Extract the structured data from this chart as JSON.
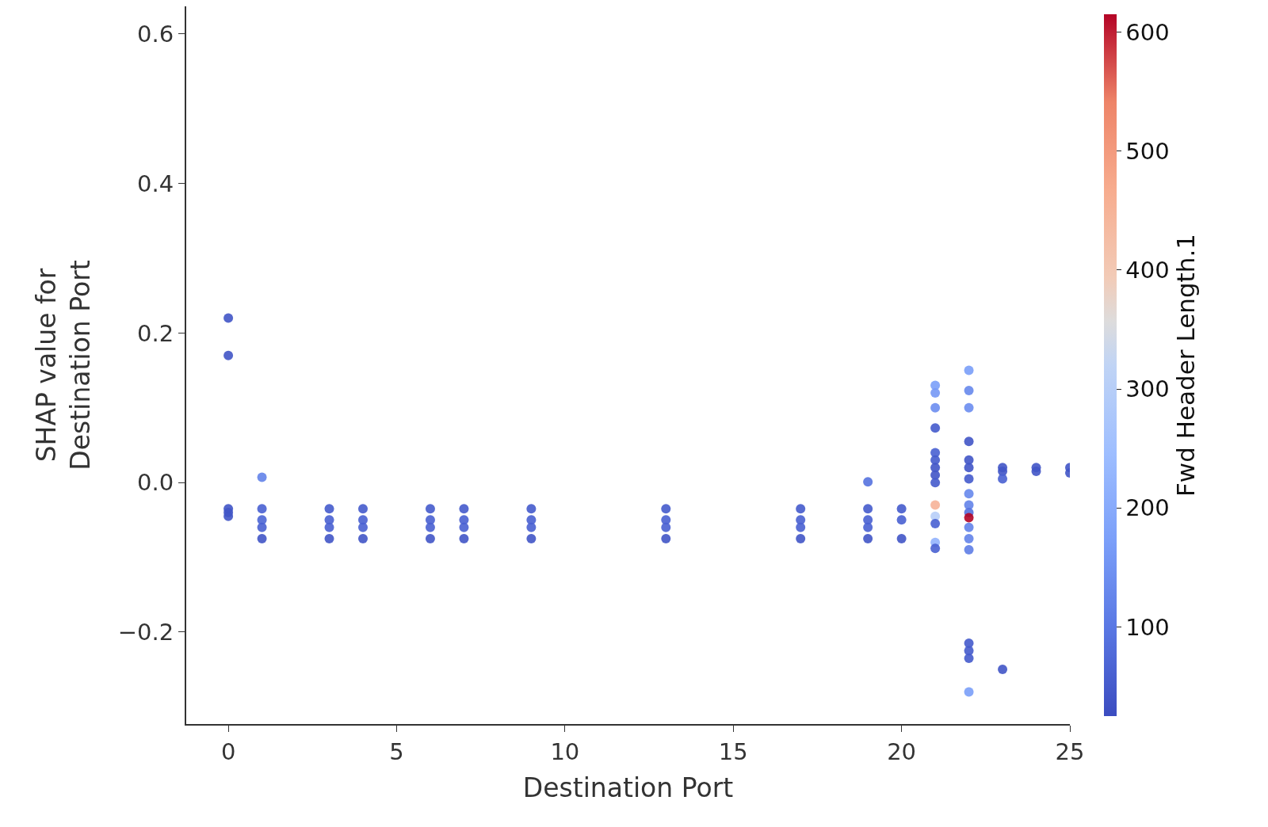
{
  "chart_data": {
    "type": "scatter",
    "xlabel": "Destination Port",
    "ylabel": "SHAP value for\nDestination Port",
    "clabel": "Fwd Header Length.1",
    "marker": "circle",
    "grid": false,
    "xlim": [
      -1.25,
      25
    ],
    "xticks": [
      0,
      5,
      10,
      15,
      20,
      25
    ],
    "ylim": [
      -0.323,
      0.637
    ],
    "yticks": [
      {
        "value": -0.2,
        "label": "−0.2"
      },
      {
        "value": 0,
        "label": "0.0"
      },
      {
        "value": 0.2,
        "label": "0.2"
      },
      {
        "value": 0.4,
        "label": "0.4"
      },
      {
        "value": 0.6,
        "label": "0.6"
      }
    ],
    "clim": [
      25,
      615
    ],
    "cticks": [
      100,
      200,
      300,
      400,
      500,
      600
    ],
    "series": [
      {
        "x": [
          0,
          0,
          0,
          0,
          0,
          1,
          1,
          1,
          1,
          1,
          3,
          3,
          3,
          3,
          4,
          4,
          4,
          4,
          6,
          6,
          6,
          6,
          7,
          7,
          7,
          7,
          9,
          9,
          9,
          9,
          13,
          13,
          13,
          13,
          17,
          17,
          17,
          17,
          19,
          19,
          19,
          19,
          19,
          20,
          20,
          20,
          21,
          21,
          21,
          21,
          21,
          21,
          21,
          21,
          21,
          21,
          21,
          21,
          21,
          21,
          22,
          22,
          22,
          22,
          22,
          22,
          22,
          22,
          22,
          22,
          22,
          22,
          22,
          22,
          22,
          22,
          22,
          23,
          23,
          23,
          23,
          24,
          24,
          25,
          25,
          22
        ],
        "values": [
          0.22,
          0.17,
          -0.035,
          -0.04,
          -0.045,
          0.007,
          -0.035,
          -0.05,
          -0.06,
          -0.075,
          -0.035,
          -0.05,
          -0.06,
          -0.075,
          -0.035,
          -0.05,
          -0.06,
          -0.075,
          -0.035,
          -0.05,
          -0.06,
          -0.075,
          -0.035,
          -0.05,
          -0.06,
          -0.075,
          -0.035,
          -0.05,
          -0.06,
          -0.075,
          -0.035,
          -0.05,
          -0.06,
          -0.075,
          -0.035,
          -0.05,
          -0.06,
          -0.075,
          0.001,
          -0.035,
          -0.05,
          -0.06,
          -0.075,
          -0.035,
          -0.05,
          -0.075,
          0.13,
          0.12,
          0.1,
          0.073,
          0.04,
          0.03,
          0.02,
          0.01,
          0,
          -0.03,
          -0.045,
          -0.055,
          -0.08,
          -0.088,
          0.15,
          0.123,
          0.1,
          0.055,
          0.03,
          0.02,
          0.005,
          -0.015,
          -0.03,
          -0.06,
          -0.075,
          -0.09,
          -0.215,
          -0.225,
          -0.235,
          -0.28,
          -0.04,
          0.02,
          0.015,
          0.005,
          -0.25,
          0.02,
          0.015,
          0.02,
          0.013,
          -0.047
        ],
        "cvalues": [
          40,
          40,
          40,
          40,
          40,
          120,
          60,
          70,
          60,
          40,
          50,
          60,
          60,
          40,
          50,
          60,
          60,
          40,
          50,
          60,
          60,
          40,
          50,
          60,
          60,
          40,
          50,
          60,
          60,
          40,
          50,
          60,
          60,
          40,
          50,
          60,
          60,
          40,
          90,
          50,
          60,
          60,
          40,
          50,
          60,
          40,
          170,
          160,
          140,
          50,
          60,
          50,
          40,
          40,
          50,
          450,
          300,
          60,
          220,
          60,
          170,
          130,
          140,
          40,
          40,
          40,
          50,
          130,
          120,
          120,
          120,
          110,
          50,
          50,
          50,
          170,
          90,
          40,
          40,
          60,
          40,
          40,
          40,
          40,
          40,
          615
        ]
      }
    ]
  }
}
